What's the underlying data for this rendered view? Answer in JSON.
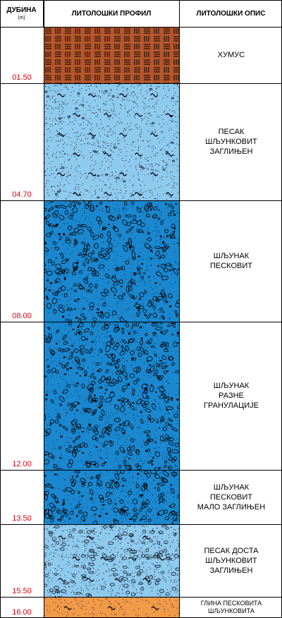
{
  "header": {
    "depth_title": "ДУБИНА",
    "depth_unit": "(m)",
    "profile_title": "ЛИТОЛОШКИ ПРОФИЛ",
    "description_title": "ЛИТОЛОШКИ ОПИС"
  },
  "layers": [
    {
      "bottom_label": "01.50",
      "description": "ХУМУС",
      "pattern": "humus",
      "color": "#b5562c"
    },
    {
      "bottom_label": "04.70",
      "description": "ПЕСАК\nШЉУНКОВИТ\nЗАГЛИЊЕН",
      "pattern": "sand-clayey",
      "color": "#8ec9ee"
    },
    {
      "bottom_label": "08.00",
      "description": "ШЉУНАК\nПЕСКОВИТ",
      "pattern": "gravel",
      "color": "#1a87cf"
    },
    {
      "bottom_label": "12.00",
      "description": "ШЉУНАК\nРАЗНЕ\nГРАНУЛАЦИЈЕ",
      "pattern": "gravel",
      "color": "#1a87cf"
    },
    {
      "bottom_label": "13.50",
      "description": "ШЉУНАК\nПЕСКОВИТ\nМАЛО ЗАГЛИЊЕН",
      "pattern": "gravel",
      "color": "#1a87cf"
    },
    {
      "bottom_label": "15.50",
      "description": "ПЕСАК ДОСТА\nШЉУНКОВИТ\nЗАГЛИЊЕН",
      "pattern": "sand-gravelly",
      "color": "#8ec9ee"
    },
    {
      "bottom_label": "16.00",
      "description": "ГЛИНА ПЕСКОВИТА\nШЉУНКОВИТА",
      "pattern": "clay",
      "color": "#f09a4a"
    }
  ]
}
